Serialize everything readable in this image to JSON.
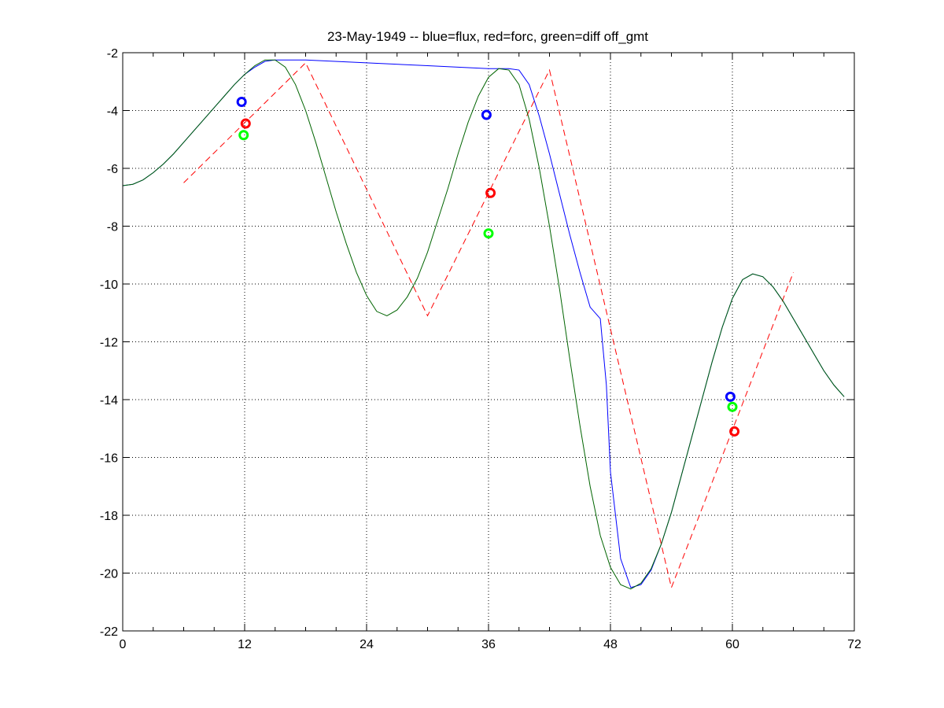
{
  "chart_data": {
    "type": "line",
    "title": "23-May-1949 -- blue=flux, red=forc, green=diff off_gmt",
    "xlabel": "",
    "ylabel": "",
    "xlim": [
      0,
      72
    ],
    "ylim": [
      -22,
      -2
    ],
    "x_ticks": [
      0,
      12,
      24,
      36,
      48,
      60,
      72
    ],
    "y_ticks": [
      -22,
      -20,
      -18,
      -16,
      -14,
      -12,
      -10,
      -8,
      -6,
      -4,
      -2
    ],
    "grid": true,
    "series": [
      {
        "color": "#0000ff",
        "style": "solid",
        "points": [
          [
            0,
            -6.6
          ],
          [
            1,
            -6.55
          ],
          [
            2,
            -6.4
          ],
          [
            3,
            -6.15
          ],
          [
            4,
            -5.85
          ],
          [
            5,
            -5.5
          ],
          [
            6,
            -5.1
          ],
          [
            7,
            -4.7
          ],
          [
            8,
            -4.3
          ],
          [
            9,
            -3.9
          ],
          [
            10,
            -3.5
          ],
          [
            11,
            -3.1
          ],
          [
            12,
            -2.75
          ],
          [
            13,
            -2.5
          ],
          [
            14,
            -2.3
          ],
          [
            15,
            -2.25
          ],
          [
            16,
            -2.25
          ],
          [
            18,
            -2.25
          ],
          [
            24,
            -2.35
          ],
          [
            30,
            -2.45
          ],
          [
            36,
            -2.55
          ],
          [
            38,
            -2.55
          ],
          [
            39,
            -2.6
          ],
          [
            40,
            -3.1
          ],
          [
            41,
            -4.2
          ],
          [
            42,
            -5.5
          ],
          [
            43,
            -6.9
          ],
          [
            44,
            -8.3
          ],
          [
            45,
            -9.6
          ],
          [
            46,
            -10.8
          ],
          [
            47,
            -11.2
          ],
          [
            47.6,
            -13.5
          ],
          [
            48,
            -16.5
          ],
          [
            49,
            -19.5
          ],
          [
            50,
            -20.5
          ],
          [
            51,
            -20.4
          ],
          [
            52,
            -19.9
          ],
          [
            53,
            -19.0
          ],
          [
            54,
            -17.9
          ],
          [
            55,
            -16.6
          ],
          [
            56,
            -15.3
          ],
          [
            57,
            -14.0
          ],
          [
            58,
            -12.7
          ],
          [
            59,
            -11.5
          ],
          [
            60,
            -10.5
          ],
          [
            61,
            -9.85
          ],
          [
            62,
            -9.65
          ],
          [
            63,
            -9.75
          ],
          [
            64,
            -10.1
          ],
          [
            65,
            -10.6
          ],
          [
            66,
            -11.2
          ],
          [
            67,
            -11.8
          ],
          [
            68,
            -12.4
          ],
          [
            69,
            -13.0
          ],
          [
            70,
            -13.5
          ],
          [
            71,
            -13.9
          ]
        ]
      },
      {
        "color": "#ff0000",
        "style": "dashed",
        "points": [
          [
            6,
            -6.5
          ],
          [
            18,
            -2.35
          ],
          [
            30,
            -11.1
          ],
          [
            42,
            -2.6
          ],
          [
            54,
            -20.5
          ],
          [
            66,
            -9.6
          ]
        ]
      },
      {
        "color": "#006400",
        "style": "solid",
        "points": [
          [
            0,
            -6.6
          ],
          [
            1,
            -6.55
          ],
          [
            2,
            -6.4
          ],
          [
            3,
            -6.15
          ],
          [
            4,
            -5.85
          ],
          [
            5,
            -5.5
          ],
          [
            6,
            -5.1
          ],
          [
            7,
            -4.7
          ],
          [
            8,
            -4.3
          ],
          [
            9,
            -3.9
          ],
          [
            10,
            -3.5
          ],
          [
            11,
            -3.1
          ],
          [
            12,
            -2.75
          ],
          [
            13,
            -2.45
          ],
          [
            14,
            -2.25
          ],
          [
            15,
            -2.25
          ],
          [
            16,
            -2.5
          ],
          [
            17,
            -3.1
          ],
          [
            18,
            -4.0
          ],
          [
            19,
            -5.1
          ],
          [
            20,
            -6.3
          ],
          [
            21,
            -7.5
          ],
          [
            22,
            -8.6
          ],
          [
            23,
            -9.6
          ],
          [
            24,
            -10.4
          ],
          [
            25,
            -10.95
          ],
          [
            26,
            -11.1
          ],
          [
            27,
            -10.9
          ],
          [
            28,
            -10.45
          ],
          [
            29,
            -9.8
          ],
          [
            30,
            -8.9
          ],
          [
            31,
            -7.8
          ],
          [
            32,
            -6.7
          ],
          [
            33,
            -5.5
          ],
          [
            34,
            -4.4
          ],
          [
            35,
            -3.5
          ],
          [
            36,
            -2.85
          ],
          [
            37,
            -2.55
          ],
          [
            38,
            -2.6
          ],
          [
            39,
            -3.1
          ],
          [
            40,
            -4.3
          ],
          [
            41,
            -6.0
          ],
          [
            42,
            -8.0
          ],
          [
            43,
            -10.2
          ],
          [
            44,
            -12.6
          ],
          [
            45,
            -14.9
          ],
          [
            46,
            -17.0
          ],
          [
            47,
            -18.7
          ],
          [
            48,
            -19.8
          ],
          [
            49,
            -20.4
          ],
          [
            50,
            -20.55
          ],
          [
            51,
            -20.35
          ],
          [
            52,
            -19.85
          ],
          [
            53,
            -19.0
          ],
          [
            54,
            -17.9
          ],
          [
            55,
            -16.6
          ],
          [
            56,
            -15.3
          ],
          [
            57,
            -14.0
          ],
          [
            58,
            -12.7
          ],
          [
            59,
            -11.5
          ],
          [
            60,
            -10.5
          ],
          [
            61,
            -9.85
          ],
          [
            62,
            -9.65
          ],
          [
            63,
            -9.75
          ],
          [
            64,
            -10.1
          ],
          [
            65,
            -10.6
          ],
          [
            66,
            -11.2
          ],
          [
            67,
            -11.8
          ],
          [
            68,
            -12.4
          ],
          [
            69,
            -13.0
          ],
          [
            70,
            -13.5
          ],
          [
            71,
            -13.9
          ]
        ]
      }
    ],
    "markers": [
      {
        "x": 11.7,
        "y": -3.7,
        "color": "#0000ff"
      },
      {
        "x": 12.1,
        "y": -4.45,
        "color": "#ff0000"
      },
      {
        "x": 11.9,
        "y": -4.85,
        "color": "#00ff00"
      },
      {
        "x": 35.8,
        "y": -4.15,
        "color": "#0000ff"
      },
      {
        "x": 36.2,
        "y": -6.85,
        "color": "#ff0000"
      },
      {
        "x": 36.0,
        "y": -8.25,
        "color": "#00ff00"
      },
      {
        "x": 59.8,
        "y": -13.9,
        "color": "#0000ff"
      },
      {
        "x": 60.2,
        "y": -15.1,
        "color": "#ff0000"
      },
      {
        "x": 60.0,
        "y": -14.25,
        "color": "#00ff00"
      }
    ]
  }
}
